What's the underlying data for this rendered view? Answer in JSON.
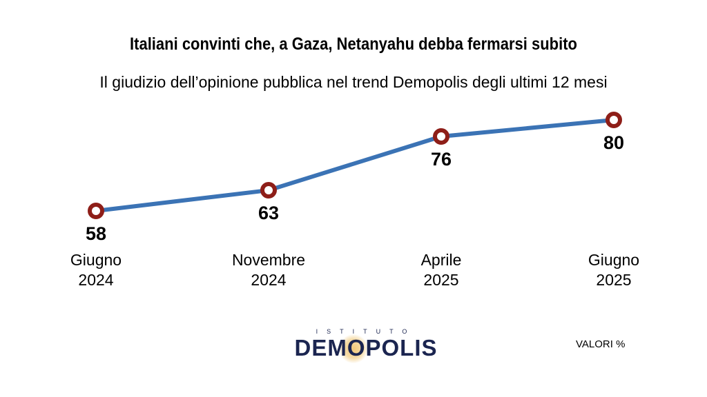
{
  "chart_data": {
    "type": "line",
    "title": "Italiani convinti che, a Gaza, Netanyahu debba fermarsi subito",
    "subtitle": "Il giudizio dell’opinione pubblica nel trend Demopolis degli ultimi 12 mesi",
    "categories": [
      [
        "Giugno",
        "2024"
      ],
      [
        "Novembre",
        "2024"
      ],
      [
        "Aprile",
        "2025"
      ],
      [
        "Giugno",
        "2025"
      ]
    ],
    "values": [
      58,
      63,
      76,
      80
    ],
    "line_color": "#3b73b5",
    "marker_color": "#8e1e18",
    "units_note": "VALORI %"
  },
  "brand": {
    "top": "ISTITUTO",
    "name": "DEMOPOLIS",
    "color": "#1b2550"
  }
}
